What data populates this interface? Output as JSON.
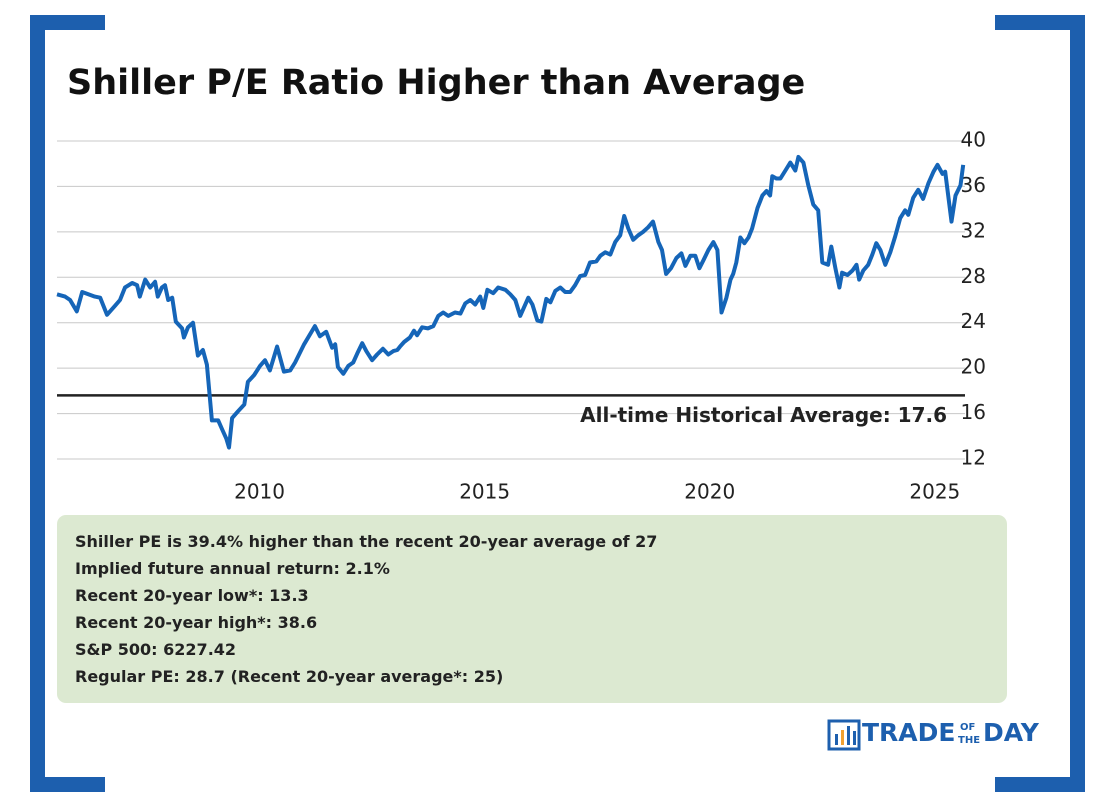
{
  "chart_data": {
    "type": "line",
    "title": "Shiller P/E Ratio Higher than Average",
    "x": [
      2005.5,
      2005.68,
      2005.79,
      2005.94,
      2006.06,
      2006.34,
      2006.46,
      2006.61,
      2006.79,
      2006.9,
      2007.01,
      2007.17,
      2007.28,
      2007.34,
      2007.46,
      2007.57,
      2007.68,
      2007.74,
      2007.83,
      2007.9,
      2007.97,
      2008.06,
      2008.14,
      2008.28,
      2008.32,
      2008.41,
      2008.52,
      2008.63,
      2008.74,
      2008.83,
      2008.94,
      2009.08,
      2009.17,
      2009.26,
      2009.32,
      2009.39,
      2009.52,
      2009.66,
      2009.74,
      2009.88,
      2010.01,
      2010.12,
      2010.23,
      2010.39,
      2010.54,
      2010.68,
      2010.79,
      2010.99,
      2011.23,
      2011.34,
      2011.48,
      2011.61,
      2011.68,
      2011.74,
      2011.86,
      2011.97,
      2012.08,
      2012.17,
      2012.28,
      2012.37,
      2012.5,
      2012.61,
      2012.74,
      2012.86,
      2012.97,
      2013.06,
      2013.12,
      2013.21,
      2013.34,
      2013.43,
      2013.5,
      2013.61,
      2013.74,
      2013.86,
      2013.97,
      2014.08,
      2014.19,
      2014.34,
      2014.46,
      2014.57,
      2014.68,
      2014.79,
      2014.9,
      2014.97,
      2015.06,
      2015.19,
      2015.3,
      2015.46,
      2015.57,
      2015.68,
      2015.79,
      2015.97,
      2016.06,
      2016.17,
      2016.26,
      2016.37,
      2016.46,
      2016.57,
      2016.68,
      2016.79,
      2016.9,
      2017.01,
      2017.12,
      2017.23,
      2017.34,
      2017.48,
      2017.57,
      2017.68,
      2017.79,
      2017.9,
      2018.01,
      2018.1,
      2018.19,
      2018.3,
      2018.41,
      2018.52,
      2018.63,
      2018.74,
      2018.86,
      2018.94,
      2019.03,
      2019.14,
      2019.26,
      2019.37,
      2019.46,
      2019.57,
      2019.68,
      2019.77,
      2019.86,
      2019.97,
      2020.08,
      2020.17,
      2020.26,
      2020.37,
      2020.46,
      2020.52,
      2020.59,
      2020.68,
      2020.77,
      2020.86,
      2020.94,
      2021.06,
      2021.17,
      2021.26,
      2021.34,
      2021.39,
      2021.48,
      2021.57,
      2021.68,
      2021.79,
      2021.9,
      2021.97,
      2022.08,
      2022.19,
      2022.3,
      2022.41,
      2022.5,
      2022.63,
      2022.7,
      2022.79,
      2022.88,
      2022.94,
      2023.06,
      2023.17,
      2023.26,
      2023.32,
      2023.41,
      2023.52,
      2023.61,
      2023.7,
      2023.79,
      2023.9,
      2024.01,
      2024.12,
      2024.23,
      2024.34,
      2024.41,
      2024.52,
      2024.63,
      2024.74,
      2024.86,
      2024.97,
      2025.06,
      2025.17,
      2025.23,
      2025.37,
      2025.46,
      2025.57,
      2025.63
    ],
    "series": [
      {
        "name": "Shiller P/E",
        "color": "#1565b8",
        "values": [
          26.5,
          26.3,
          26.0,
          25.0,
          26.7,
          26.3,
          26.2,
          24.7,
          25.5,
          26.0,
          27.1,
          27.5,
          27.3,
          26.3,
          27.8,
          27.1,
          27.6,
          26.3,
          27.1,
          27.3,
          26.0,
          26.2,
          24.1,
          23.5,
          22.7,
          23.6,
          24.0,
          21.1,
          21.6,
          20.3,
          15.4,
          15.4,
          14.6,
          13.8,
          13.0,
          15.6,
          16.2,
          16.8,
          18.8,
          19.4,
          20.2,
          20.7,
          19.8,
          21.9,
          19.7,
          19.8,
          20.5,
          22.1,
          23.7,
          22.8,
          23.2,
          21.8,
          22.1,
          20.1,
          19.5,
          20.2,
          20.5,
          21.3,
          22.2,
          21.5,
          20.7,
          21.2,
          21.7,
          21.2,
          21.5,
          21.6,
          21.9,
          22.3,
          22.7,
          23.3,
          22.9,
          23.6,
          23.5,
          23.7,
          24.6,
          24.9,
          24.6,
          24.9,
          24.8,
          25.7,
          26.0,
          25.6,
          26.3,
          25.3,
          26.9,
          26.6,
          27.1,
          26.9,
          26.5,
          26.0,
          24.6,
          26.2,
          25.6,
          24.2,
          24.1,
          26.1,
          25.8,
          26.8,
          27.1,
          26.7,
          26.7,
          27.3,
          28.1,
          28.2,
          29.3,
          29.4,
          29.9,
          30.2,
          30.0,
          31.1,
          31.7,
          33.4,
          32.3,
          31.3,
          31.7,
          32.0,
          32.4,
          32.9,
          31.1,
          30.4,
          28.3,
          28.8,
          29.7,
          30.1,
          29.0,
          29.9,
          29.9,
          28.8,
          29.5,
          30.4,
          31.1,
          30.4,
          24.9,
          26.2,
          27.8,
          28.3,
          29.3,
          31.5,
          31.0,
          31.5,
          32.3,
          34.1,
          35.2,
          35.6,
          35.2,
          36.9,
          36.7,
          36.7,
          37.4,
          38.1,
          37.4,
          38.6,
          38.1,
          36.1,
          34.4,
          33.9,
          29.3,
          29.1,
          30.7,
          28.8,
          27.1,
          28.4,
          28.2,
          28.6,
          29.1,
          27.8,
          28.6,
          29.1,
          30.0,
          31.0,
          30.4,
          29.1,
          30.2,
          31.6,
          33.2,
          33.9,
          33.5,
          35.0,
          35.7,
          34.9,
          36.3,
          37.3,
          37.9,
          37.1,
          37.3,
          32.9,
          35.2,
          36.1,
          37.9
        ]
      }
    ],
    "xlim": [
      2005.5,
      2025.67
    ],
    "xticks": [
      2010,
      2015,
      2020,
      2025
    ],
    "ylim": [
      12,
      40
    ],
    "yticks": [
      12,
      16,
      20,
      24,
      28,
      32,
      36,
      40
    ],
    "grid": true,
    "reference_line": {
      "value": 17.6,
      "label": "All-time Historical Average: 17.6"
    }
  },
  "info": [
    {
      "label": "Shiller PE is 39.4% higher than the recent 20-year average of 27"
    },
    {
      "label": "Implied future annual return:",
      "value": "2.1%"
    },
    {
      "label": "Recent 20-year low*:",
      "value": "13.3"
    },
    {
      "label": "Recent 20-year high*:",
      "value": "38.6"
    },
    {
      "label": "S&P 500:",
      "value": "6227.42"
    },
    {
      "label": "Regular PE:",
      "value": "28.7 (Recent 20-year average*: 25)"
    }
  ],
  "logo": {
    "word1": "TRADE",
    "small1": "OF",
    "small2": "THE",
    "word2": "DAY"
  }
}
